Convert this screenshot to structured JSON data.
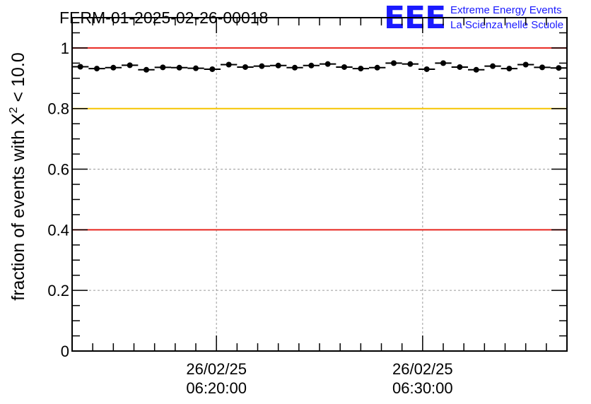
{
  "header": {
    "title": "FERM-01-2025-02-26-00018",
    "logo_text": "EEE",
    "logo_line1": "Extreme Energy Events",
    "logo_line2": "La Scienza nelle Scuole"
  },
  "chart_data": {
    "type": "scatter",
    "title": "FERM-01-2025-02-26-00018",
    "ylabel_main": "fraction of events with X",
    "ylabel_sup": "2",
    "ylabel_tail": " < 10.0",
    "xlabel": "",
    "x_start": "26/02/25 06:13:00",
    "x_end": "26/02/25 06:37:00",
    "ylim": [
      0,
      1.1
    ],
    "y_ticks": [
      "0",
      "0.2",
      "0.4",
      "0.6",
      "0.8",
      "1"
    ],
    "x_ticks": [
      {
        "date": "26/02/25",
        "time": "06:20:00"
      },
      {
        "date": "26/02/25",
        "time": "06:30:00"
      }
    ],
    "grid": true,
    "reference_lines": [
      {
        "y": 1.0,
        "color": "#e8251f"
      },
      {
        "y": 0.8,
        "color": "#f5c400"
      },
      {
        "y": 0.4,
        "color": "#e8251f"
      }
    ],
    "series": [
      {
        "bin_width_min": 0.8,
        "x_min": [
          0.4,
          1.2,
          2.0,
          2.8,
          3.6,
          4.4,
          5.2,
          6.0,
          6.8,
          7.6,
          8.4,
          9.2,
          10.0,
          10.8,
          11.6,
          12.4,
          13.2,
          14.0,
          14.8,
          15.6,
          16.4,
          17.2,
          18.0,
          18.8,
          19.6,
          20.4,
          21.2,
          22.0,
          22.8,
          23.6
        ],
        "values": [
          0.938,
          0.932,
          0.935,
          0.943,
          0.928,
          0.936,
          0.935,
          0.933,
          0.93,
          0.945,
          0.937,
          0.94,
          0.942,
          0.935,
          0.942,
          0.947,
          0.937,
          0.932,
          0.935,
          0.95,
          0.947,
          0.93,
          0.95,
          0.937,
          0.928,
          0.94,
          0.932,
          0.945,
          0.936,
          0.934
        ],
        "color": "#000000"
      }
    ]
  }
}
